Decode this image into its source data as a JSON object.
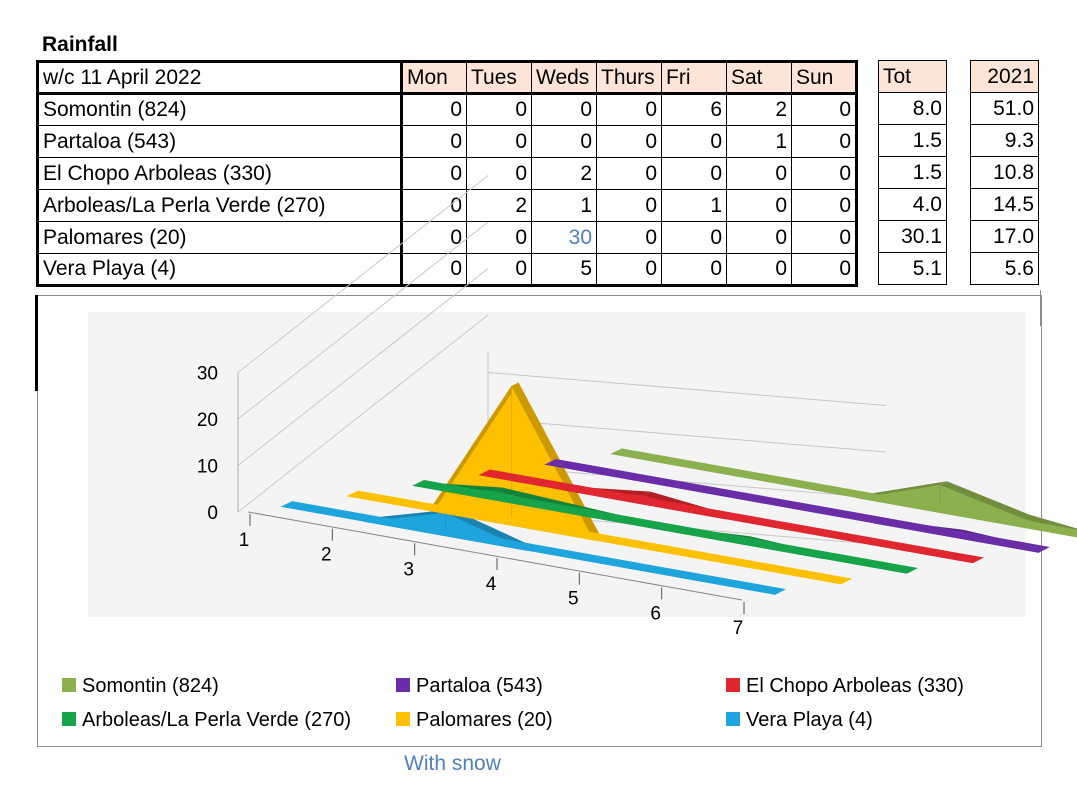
{
  "title": "Rainfall",
  "table": {
    "header_label": "w/c 11 April 2022",
    "days": [
      "Mon",
      "Tues",
      "Weds",
      "Thurs",
      "Fri",
      "Sat",
      "Sun"
    ],
    "total_label": "Tot",
    "prev_year_label": "2021",
    "rows": [
      {
        "name": "Somontin (824)",
        "values": [
          "0",
          "0",
          "0",
          "0",
          "6",
          "2",
          "0"
        ],
        "total": "8.0",
        "prev": "51.0"
      },
      {
        "name": "Partaloa (543)",
        "values": [
          "0",
          "0",
          "0",
          "0",
          "0",
          "1",
          "0"
        ],
        "total": "1.5",
        "prev": "9.3"
      },
      {
        "name": "El Chopo Arboleas (330)",
        "values": [
          "0",
          "0",
          "2",
          "0",
          "0",
          "0",
          "0"
        ],
        "total": "1.5",
        "prev": "10.8"
      },
      {
        "name": "Arboleas/La Perla Verde (270)",
        "values": [
          "0",
          "2",
          "1",
          "0",
          "1",
          "0",
          "0"
        ],
        "total": "4.0",
        "prev": "14.5"
      },
      {
        "name": "Palomares (20)",
        "values": [
          "0",
          "0",
          "30",
          "0",
          "0",
          "0",
          "0"
        ],
        "total": "30.1",
        "prev": "17.0"
      },
      {
        "name": "Vera Playa (4)",
        "values": [
          "0",
          "0",
          "5",
          "0",
          "0",
          "0",
          "0"
        ],
        "total": "5.1",
        "prev": "5.6"
      }
    ]
  },
  "chart_data": {
    "type": "area",
    "x": [
      1,
      2,
      3,
      4,
      5,
      6,
      7
    ],
    "ylim": [
      0,
      30
    ],
    "yticks": [
      0,
      10,
      20,
      30
    ],
    "grid": true,
    "legend_position": "bottom",
    "series": [
      {
        "name": "Somontin (824)",
        "values": [
          0,
          0,
          0,
          0,
          6,
          2,
          0
        ],
        "color": "#8db04e"
      },
      {
        "name": "Partaloa (543)",
        "values": [
          0,
          0,
          0,
          0,
          0,
          1,
          0
        ],
        "color": "#6a2da8"
      },
      {
        "name": "El Chopo Arboleas (330)",
        "values": [
          0,
          0,
          2,
          0,
          0,
          0,
          0
        ],
        "color": "#e0262e"
      },
      {
        "name": "Arboleas/La Perla Verde (270)",
        "values": [
          0,
          2,
          1,
          0,
          1,
          0,
          0
        ],
        "color": "#17a34a"
      },
      {
        "name": "Palomares (20)",
        "values": [
          0,
          0,
          30,
          0,
          0,
          0,
          0
        ],
        "color": "#ffc000"
      },
      {
        "name": "Vera Playa (4)",
        "values": [
          0,
          0,
          5,
          0,
          0,
          0,
          0
        ],
        "color": "#1fa5dd"
      }
    ]
  },
  "footnote": "With snow",
  "highlight_color": "#4f81bd"
}
